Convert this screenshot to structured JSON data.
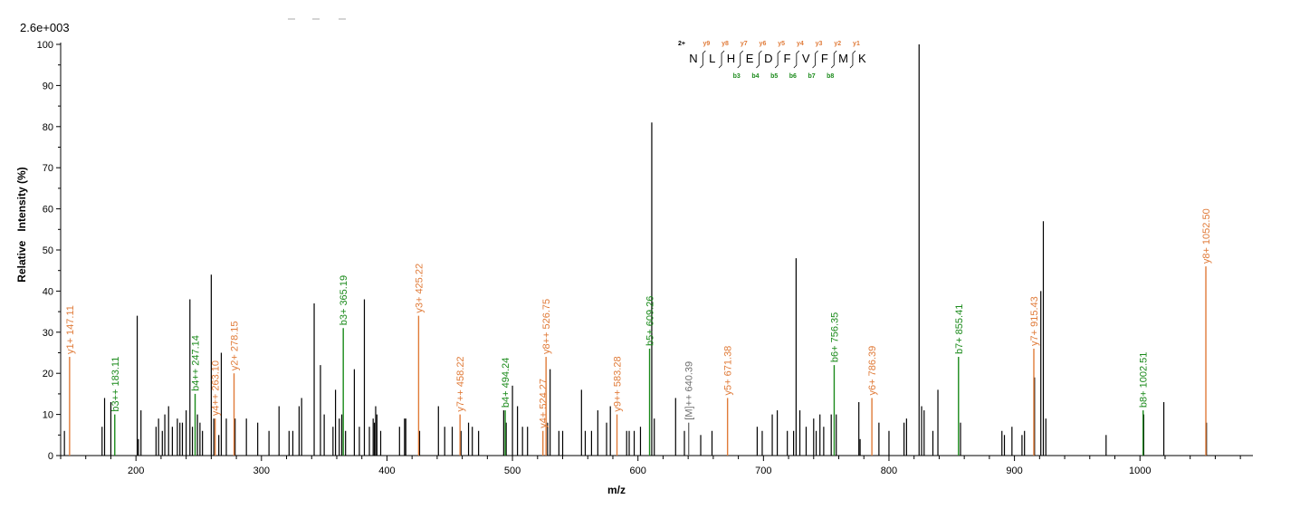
{
  "chart_data": {
    "type": "bar",
    "scale_label": "2.6e+003",
    "xlabel": "m/z",
    "ylabel": "Relative   Intensity (%)",
    "xlim": [
      140,
      1090
    ],
    "ylim": [
      0,
      100
    ],
    "x_ticks": [
      200,
      300,
      400,
      500,
      600,
      700,
      800,
      900,
      1000
    ],
    "y_ticks": [
      0,
      10,
      20,
      30,
      40,
      50,
      60,
      70,
      80,
      90,
      100
    ],
    "grid": false,
    "colors": {
      "y_ion": "#e07b39",
      "b_ion": "#1a8a1a",
      "precursor": "#707070",
      "unassigned": "#000000",
      "charge": "#0000cc"
    },
    "peptide": {
      "charge": "2+",
      "sequence": [
        "N",
        "L",
        "H",
        "E",
        "D",
        "F",
        "V",
        "F",
        "M",
        "K"
      ],
      "y_labels": [
        "y9",
        "y8",
        "y7",
        "y6",
        "y5",
        "y4",
        "y3",
        "y2",
        "y1"
      ],
      "b_labels": [
        "b3",
        "b4",
        "b5",
        "b6",
        "b7",
        "b8"
      ]
    },
    "annotated_peaks": [
      {
        "label": "y1+ 147.11",
        "mz": 147.11,
        "intensity": 24,
        "ion": "y"
      },
      {
        "label": "b3++ 183.11",
        "mz": 183.11,
        "intensity": 10,
        "ion": "b"
      },
      {
        "label": "b4++ 247.14",
        "mz": 247.14,
        "intensity": 15,
        "ion": "b"
      },
      {
        "label": "y4++ 263.10",
        "mz": 263.1,
        "intensity": 9,
        "ion": "y"
      },
      {
        "label": "y2+ 278.15",
        "mz": 278.15,
        "intensity": 20,
        "ion": "y"
      },
      {
        "label": "b3+ 365.19",
        "mz": 365.19,
        "intensity": 31,
        "ion": "b"
      },
      {
        "label": "y3+ 425.22",
        "mz": 425.22,
        "intensity": 34,
        "ion": "y"
      },
      {
        "label": "y7++ 458.22",
        "mz": 458.22,
        "intensity": 10,
        "ion": "y"
      },
      {
        "label": "b4+ 494.24",
        "mz": 494.24,
        "intensity": 11,
        "ion": "b"
      },
      {
        "label": "y4+ 524.27",
        "mz": 524.27,
        "intensity": 6,
        "ion": "y"
      },
      {
        "label": "y8++ 526.75",
        "mz": 526.75,
        "intensity": 24,
        "ion": "y"
      },
      {
        "label": "y9++ 583.28",
        "mz": 583.28,
        "intensity": 10,
        "ion": "y"
      },
      {
        "label": "b5+ 609.26",
        "mz": 609.26,
        "intensity": 26,
        "ion": "b"
      },
      {
        "label": "[M]++ 640.39",
        "mz": 640.39,
        "intensity": 8,
        "ion": "precursor"
      },
      {
        "label": "y5+ 671.38",
        "mz": 671.38,
        "intensity": 14,
        "ion": "y"
      },
      {
        "label": "b6+ 756.35",
        "mz": 756.35,
        "intensity": 22,
        "ion": "b"
      },
      {
        "label": "y6+ 786.39",
        "mz": 786.39,
        "intensity": 14,
        "ion": "y"
      },
      {
        "label": "b7+ 855.41",
        "mz": 855.41,
        "intensity": 24,
        "ion": "b"
      },
      {
        "label": "y7+ 915.43",
        "mz": 915.43,
        "intensity": 26,
        "ion": "y"
      },
      {
        "label": "b8+ 1002.51",
        "mz": 1002.51,
        "intensity": 11,
        "ion": "b"
      },
      {
        "label": "y8+ 1052.50",
        "mz": 1052.5,
        "intensity": 46,
        "ion": "y"
      }
    ],
    "unassigned_peaks": [
      [
        143,
        6
      ],
      [
        173,
        7
      ],
      [
        175,
        14
      ],
      [
        180,
        13
      ],
      [
        201,
        34
      ],
      [
        202,
        4
      ],
      [
        204,
        11
      ],
      [
        216,
        7
      ],
      [
        218,
        9
      ],
      [
        221,
        6
      ],
      [
        223,
        10
      ],
      [
        226,
        12
      ],
      [
        229,
        7
      ],
      [
        233,
        9
      ],
      [
        235,
        8
      ],
      [
        237,
        8
      ],
      [
        240,
        11
      ],
      [
        243,
        38
      ],
      [
        245,
        7
      ],
      [
        249,
        10
      ],
      [
        251,
        8
      ],
      [
        253,
        6
      ],
      [
        260,
        44
      ],
      [
        262,
        9
      ],
      [
        266,
        5
      ],
      [
        268,
        25
      ],
      [
        272,
        9
      ],
      [
        279,
        9
      ],
      [
        288,
        9
      ],
      [
        297,
        8
      ],
      [
        306,
        6
      ],
      [
        314,
        12
      ],
      [
        322,
        6
      ],
      [
        325,
        6
      ],
      [
        330,
        12
      ],
      [
        332,
        14
      ],
      [
        342,
        37
      ],
      [
        347,
        22
      ],
      [
        350,
        10
      ],
      [
        357,
        7
      ],
      [
        359,
        16
      ],
      [
        362,
        9
      ],
      [
        364,
        10
      ],
      [
        367,
        6
      ],
      [
        374,
        21
      ],
      [
        378,
        7
      ],
      [
        382,
        38
      ],
      [
        386,
        7
      ],
      [
        389,
        9
      ],
      [
        390,
        8
      ],
      [
        391,
        12
      ],
      [
        392,
        10
      ],
      [
        395,
        6
      ],
      [
        410,
        7
      ],
      [
        414,
        9
      ],
      [
        415,
        9
      ],
      [
        426,
        6
      ],
      [
        441,
        12
      ],
      [
        446,
        7
      ],
      [
        452,
        7
      ],
      [
        459,
        6
      ],
      [
        465,
        8
      ],
      [
        468,
        7
      ],
      [
        473,
        6
      ],
      [
        493,
        11
      ],
      [
        495,
        8
      ],
      [
        500,
        17
      ],
      [
        504,
        12
      ],
      [
        508,
        7
      ],
      [
        512,
        7
      ],
      [
        528,
        8
      ],
      [
        530,
        21
      ],
      [
        537,
        6
      ],
      [
        540,
        6
      ],
      [
        555,
        16
      ],
      [
        558,
        6
      ],
      [
        563,
        6
      ],
      [
        568,
        11
      ],
      [
        575,
        8
      ],
      [
        578,
        12
      ],
      [
        591,
        6
      ],
      [
        593,
        6
      ],
      [
        597,
        6
      ],
      [
        602,
        7
      ],
      [
        611,
        81
      ],
      [
        613,
        9
      ],
      [
        630,
        14
      ],
      [
        637,
        6
      ],
      [
        650,
        5
      ],
      [
        659,
        6
      ],
      [
        695,
        7
      ],
      [
        699,
        6
      ],
      [
        707,
        10
      ],
      [
        711,
        11
      ],
      [
        719,
        6
      ],
      [
        724,
        6
      ],
      [
        726,
        48
      ],
      [
        729,
        11
      ],
      [
        734,
        7
      ],
      [
        740,
        9
      ],
      [
        742,
        6
      ],
      [
        745,
        10
      ],
      [
        748,
        7
      ],
      [
        754,
        10
      ],
      [
        758,
        10
      ],
      [
        776,
        13
      ],
      [
        777,
        4
      ],
      [
        792,
        8
      ],
      [
        800,
        6
      ],
      [
        812,
        8
      ],
      [
        814,
        9
      ],
      [
        824,
        100
      ],
      [
        826,
        12
      ],
      [
        828,
        11
      ],
      [
        835,
        6
      ],
      [
        839,
        16
      ],
      [
        857,
        8
      ],
      [
        890,
        6
      ],
      [
        892,
        5
      ],
      [
        898,
        7
      ],
      [
        906,
        5
      ],
      [
        908,
        6
      ],
      [
        916,
        19
      ],
      [
        921,
        40
      ],
      [
        923,
        57
      ],
      [
        925,
        9
      ],
      [
        973,
        5
      ],
      [
        1003,
        10
      ],
      [
        1019,
        13
      ],
      [
        1053,
        8
      ]
    ]
  }
}
